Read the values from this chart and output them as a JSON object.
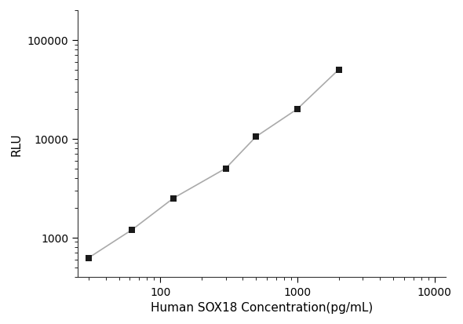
{
  "x_values": [
    30,
    62.5,
    125,
    300,
    500,
    1000,
    2000
  ],
  "y_values": [
    620,
    1200,
    2500,
    5000,
    10500,
    20000,
    50000
  ],
  "line_color": "#aaaaaa",
  "marker_color": "#1a1a1a",
  "marker_style": "s",
  "marker_size": 6,
  "xlabel": "Human SOX18 Concentration(pg/mL)",
  "ylabel": "RLU",
  "xlim": [
    25,
    12000
  ],
  "ylim": [
    400,
    200000
  ],
  "x_ticks": [
    100,
    1000,
    10000
  ],
  "x_tick_labels": [
    "100",
    "1000",
    "10000"
  ],
  "y_ticks": [
    1000,
    10000,
    100000
  ],
  "y_tick_labels": [
    "1000",
    "10000",
    "100000"
  ],
  "background_color": "#ffffff",
  "xlabel_fontsize": 11,
  "ylabel_fontsize": 11,
  "tick_fontsize": 10
}
